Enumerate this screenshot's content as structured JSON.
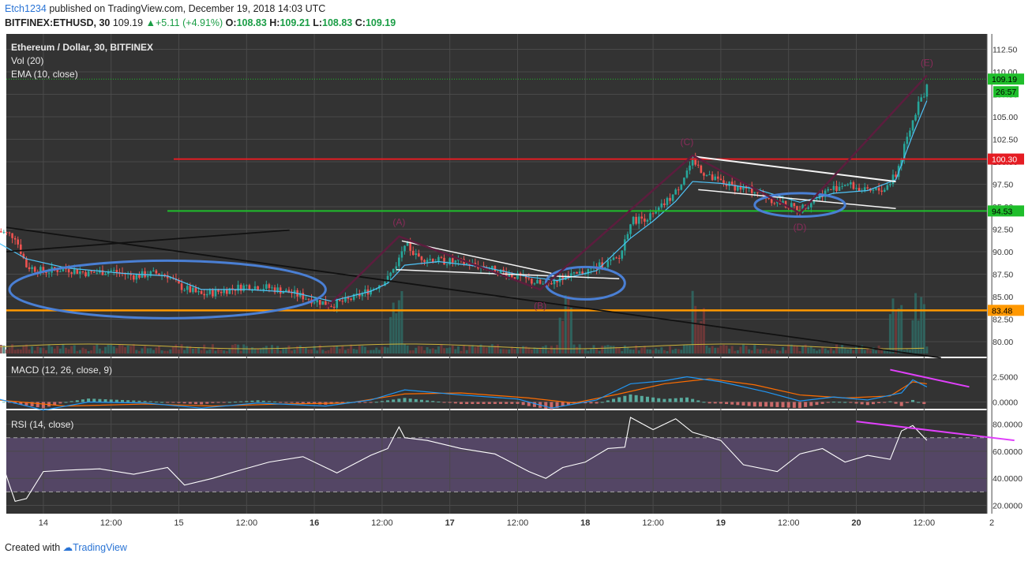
{
  "header": {
    "user": "Etch1234",
    "published_text": "published on TradingView.com, December 19, 2018 14:03 UTC",
    "symbol": "BITFINEX:ETHUSD, 30",
    "last": "109.19",
    "change": "+5.11 (+4.91%)",
    "o_label": "O:",
    "o": "108.83",
    "h_label": "H:",
    "h": "109.21",
    "l_label": "L:",
    "l": "108.83",
    "c_label": "C:",
    "c": "109.19"
  },
  "footer": {
    "created_with": "Created with",
    "brand": "TradingView"
  },
  "colors": {
    "background": "#333333",
    "up_candle": "#26a69a",
    "down_candle": "#ef5350",
    "ema": "#4fc3f7",
    "red_level": "#e51c23",
    "green_level": "#1fbe2b",
    "orange_level": "#ff9800",
    "pattern_line": "#5c1d3e",
    "ellipse": "#4a7fd4",
    "macd_line": "#2196f3",
    "signal_line": "#ff6d00",
    "rsi_line": "#ffffff",
    "divergence": "#e040fb"
  },
  "chart_data": [
    {
      "type": "candlestick",
      "title": "Ethereum / Dollar, 30, BITFINEX",
      "indicators": [
        "Vol (20)",
        "EMA (10, close)"
      ],
      "ylim": [
        78.5,
        113.5
      ],
      "y_ticks": [
        "112.50",
        "110.00",
        "107.50",
        "105.00",
        "102.50",
        "100.00",
        "97.50",
        "95.00",
        "92.50",
        "90.00",
        "87.50",
        "85.00",
        "82.50",
        "80.00"
      ],
      "x_ticks": [
        "14",
        "12:00",
        "15",
        "12:00",
        "16",
        "12:00",
        "17",
        "12:00",
        "18",
        "12:00",
        "19",
        "12:00",
        "20",
        "12:00",
        "2"
      ],
      "x_range_hours": [
        0,
        163
      ],
      "price_path": [
        [
          -2,
          92.3
        ],
        [
          1,
          91.7
        ],
        [
          3,
          88.4
        ],
        [
          6,
          87.8
        ],
        [
          10,
          88.1
        ],
        [
          14,
          87.6
        ],
        [
          18,
          87.9
        ],
        [
          22,
          87.3
        ],
        [
          26,
          87.6
        ],
        [
          28,
          87.4
        ],
        [
          30,
          86.2
        ],
        [
          34,
          85.2
        ],
        [
          38,
          85.7
        ],
        [
          42,
          86.2
        ],
        [
          46,
          86.0
        ],
        [
          50,
          85.4
        ],
        [
          54,
          84.6
        ],
        [
          57,
          84.1
        ],
        [
          60,
          84.6
        ],
        [
          64,
          85.8
        ],
        [
          67,
          87.0
        ],
        [
          69,
          89.2
        ],
        [
          70,
          91.1
        ],
        [
          72,
          89.5
        ],
        [
          76,
          89.0
        ],
        [
          80,
          88.8
        ],
        [
          84,
          88.3
        ],
        [
          88,
          87.6
        ],
        [
          92,
          86.8
        ],
        [
          95,
          86.2
        ],
        [
          97,
          87.0
        ],
        [
          100,
          87.3
        ],
        [
          104,
          88.3
        ],
        [
          108,
          89.2
        ],
        [
          110,
          93.4
        ],
        [
          114,
          94.0
        ],
        [
          118,
          96.6
        ],
        [
          120,
          99.0
        ],
        [
          121,
          100.0
        ],
        [
          124,
          98.2
        ],
        [
          128,
          97.3
        ],
        [
          132,
          96.8
        ],
        [
          136,
          95.5
        ],
        [
          140,
          94.7
        ],
        [
          144,
          96.5
        ],
        [
          148,
          97.6
        ],
        [
          152,
          96.6
        ],
        [
          155,
          97.0
        ],
        [
          157,
          98.5
        ],
        [
          159,
          102.6
        ],
        [
          161,
          106.5
        ],
        [
          162.5,
          108.2
        ]
      ],
      "ema_path": [
        [
          -2,
          91.0
        ],
        [
          3,
          89.2
        ],
        [
          10,
          88.2
        ],
        [
          20,
          87.6
        ],
        [
          28,
          87.3
        ],
        [
          34,
          85.8
        ],
        [
          42,
          85.8
        ],
        [
          50,
          85.5
        ],
        [
          57,
          84.5
        ],
        [
          64,
          85.6
        ],
        [
          67,
          86.5
        ],
        [
          70,
          88.5
        ],
        [
          76,
          88.9
        ],
        [
          84,
          88.3
        ],
        [
          92,
          87.2
        ],
        [
          97,
          86.8
        ],
        [
          104,
          87.9
        ],
        [
          110,
          91.5
        ],
        [
          114,
          93.4
        ],
        [
          118,
          95.6
        ],
        [
          121,
          97.8
        ],
        [
          126,
          97.6
        ],
        [
          132,
          97.0
        ],
        [
          140,
          95.5
        ],
        [
          146,
          96.5
        ],
        [
          152,
          96.8
        ],
        [
          157,
          98.0
        ],
        [
          160,
          103.0
        ],
        [
          162.5,
          106.8
        ]
      ],
      "annotations": {
        "red_level": 100.3,
        "green_level": 94.53,
        "orange_level": 83.48,
        "last_price": 109.19,
        "countdown": "26:57",
        "wave_labels": [
          "(A)",
          "(B)",
          "(C)",
          "(D)",
          "(E)"
        ]
      },
      "volume_spikes_hours": [
        68.5,
        98.5,
        122,
        157,
        161
      ]
    },
    {
      "type": "line",
      "title": "MACD (12, 26, close, 9)",
      "ylim": [
        -0.6,
        3.3
      ],
      "y_ticks": [
        "2.5000",
        "0.0000"
      ],
      "series": [
        {
          "name": "MACD",
          "points": [
            [
              -2,
              0.3
            ],
            [
              6,
              -0.8
            ],
            [
              14,
              0.0
            ],
            [
              24,
              -0.1
            ],
            [
              34,
              -0.6
            ],
            [
              44,
              -0.1
            ],
            [
              56,
              -0.4
            ],
            [
              64,
              0.2
            ],
            [
              70,
              1.2
            ],
            [
              80,
              0.7
            ],
            [
              90,
              0.3
            ],
            [
              96,
              -0.6
            ],
            [
              104,
              0.2
            ],
            [
              110,
              1.8
            ],
            [
              116,
              2.1
            ],
            [
              120,
              2.5
            ],
            [
              126,
              2.0
            ],
            [
              134,
              1.0
            ],
            [
              140,
              0.1
            ],
            [
              146,
              0.5
            ],
            [
              152,
              0.2
            ],
            [
              158,
              0.9
            ],
            [
              160,
              2.2
            ],
            [
              162.5,
              1.5
            ]
          ]
        },
        {
          "name": "Signal",
          "points": [
            [
              -2,
              0.2
            ],
            [
              10,
              -0.4
            ],
            [
              24,
              -0.2
            ],
            [
              36,
              -0.4
            ],
            [
              48,
              -0.2
            ],
            [
              60,
              -0.1
            ],
            [
              70,
              0.8
            ],
            [
              80,
              0.9
            ],
            [
              92,
              0.4
            ],
            [
              100,
              -0.1
            ],
            [
              108,
              0.8
            ],
            [
              116,
              1.8
            ],
            [
              124,
              2.3
            ],
            [
              132,
              1.7
            ],
            [
              140,
              0.7
            ],
            [
              148,
              0.4
            ],
            [
              156,
              0.6
            ],
            [
              160,
              2.0
            ],
            [
              162.5,
              1.8
            ]
          ]
        }
      ]
    },
    {
      "type": "line",
      "title": "RSI (14, close)",
      "ylim": [
        15,
        88
      ],
      "y_ticks": [
        "80.0000",
        "60.0000",
        "40.0000",
        "20.0000"
      ],
      "bands": [
        70,
        30
      ],
      "series": [
        {
          "name": "RSI",
          "points": [
            [
              -2,
              60
            ],
            [
              0,
              35
            ],
            [
              1,
              23
            ],
            [
              3,
              25
            ],
            [
              6,
              45
            ],
            [
              10,
              46
            ],
            [
              16,
              47
            ],
            [
              22,
              43
            ],
            [
              28,
              48
            ],
            [
              31,
              35
            ],
            [
              36,
              40
            ],
            [
              40,
              45
            ],
            [
              46,
              52
            ],
            [
              52,
              56
            ],
            [
              58,
              44
            ],
            [
              64,
              57
            ],
            [
              67,
              62
            ],
            [
              69,
              78
            ],
            [
              70,
              70
            ],
            [
              74,
              68
            ],
            [
              80,
              62
            ],
            [
              86,
              58
            ],
            [
              92,
              45
            ],
            [
              95,
              40
            ],
            [
              98,
              48
            ],
            [
              102,
              52
            ],
            [
              106,
              62
            ],
            [
              109,
              63
            ],
            [
              110,
              85
            ],
            [
              114,
              76
            ],
            [
              118,
              84
            ],
            [
              121,
              74
            ],
            [
              126,
              68
            ],
            [
              130,
              50
            ],
            [
              136,
              45
            ],
            [
              140,
              58
            ],
            [
              144,
              62
            ],
            [
              148,
              52
            ],
            [
              152,
              57
            ],
            [
              156,
              54
            ],
            [
              158,
              75
            ],
            [
              160,
              79
            ],
            [
              162.5,
              68
            ]
          ]
        }
      ]
    }
  ]
}
